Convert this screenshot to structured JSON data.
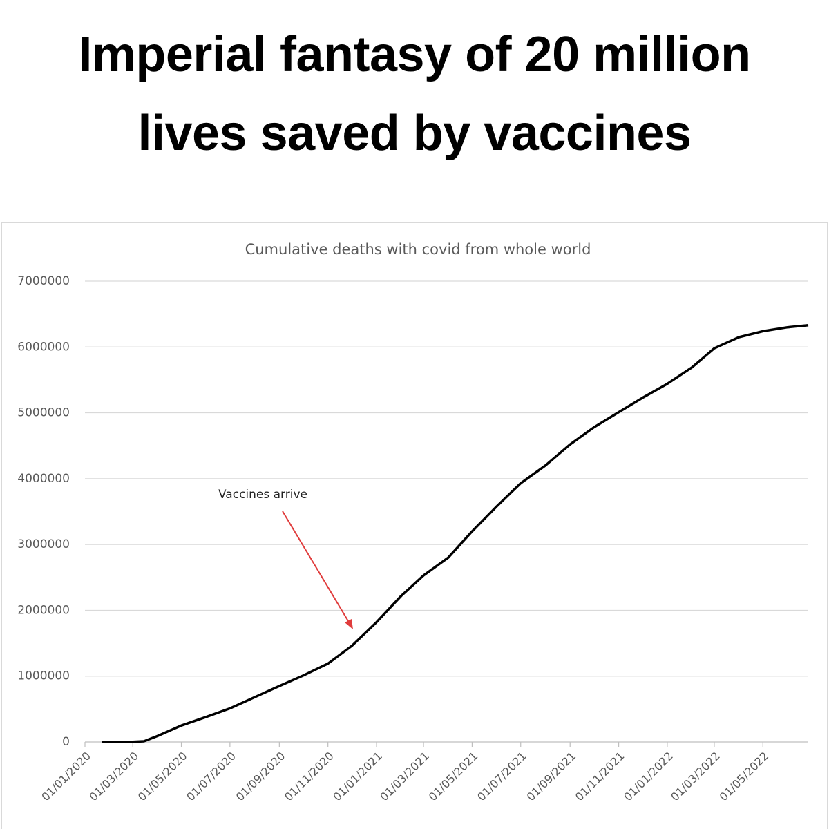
{
  "headline": [
    "Imperial fantasy of 20 million",
    "lives saved by vaccines"
  ],
  "chart_data": {
    "type": "line",
    "title": "Cumulative deaths with covid from whole world",
    "x": [
      "22/01/2020",
      "01/03/2020",
      "15/03/2020",
      "01/04/2020",
      "01/05/2020",
      "01/06/2020",
      "01/07/2020",
      "01/08/2020",
      "01/09/2020",
      "01/10/2020",
      "01/11/2020",
      "01/12/2020",
      "01/01/2021",
      "01/02/2021",
      "01/03/2021",
      "01/04/2021",
      "01/05/2021",
      "01/06/2021",
      "01/07/2021",
      "01/08/2021",
      "01/09/2021",
      "01/10/2021",
      "01/11/2021",
      "01/12/2021",
      "01/01/2022",
      "01/02/2022",
      "01/03/2022",
      "01/04/2022",
      "01/05/2022",
      "01/06/2022",
      "27/06/2022"
    ],
    "series": [
      {
        "name": "Cumulative deaths",
        "color": "#000000",
        "values": [
          0,
          3000,
          10000,
          90000,
          250000,
          380000,
          510000,
          680000,
          850000,
          1010000,
          1190000,
          1460000,
          1820000,
          2220000,
          2530000,
          2800000,
          3200000,
          3580000,
          3930000,
          4200000,
          4520000,
          4780000,
          5010000,
          5230000,
          5440000,
          5690000,
          5980000,
          6150000,
          6240000,
          6300000,
          6330000
        ]
      }
    ],
    "xlim": [
      "01/01/2020",
      "27/06/2022"
    ],
    "xticks": [
      "01/01/2020",
      "01/03/2020",
      "01/05/2020",
      "01/07/2020",
      "01/09/2020",
      "01/11/2020",
      "01/01/2021",
      "01/03/2021",
      "01/05/2021",
      "01/07/2021",
      "01/09/2021",
      "01/11/2021",
      "01/01/2022",
      "01/03/2022",
      "01/05/2022"
    ],
    "ylim": [
      0,
      7000000
    ],
    "yticks": [
      0,
      1000000,
      2000000,
      3000000,
      4000000,
      5000000,
      6000000,
      7000000
    ],
    "grid": true,
    "annotation": {
      "text": "Vaccines arrive",
      "color": "#e03c3c"
    }
  }
}
